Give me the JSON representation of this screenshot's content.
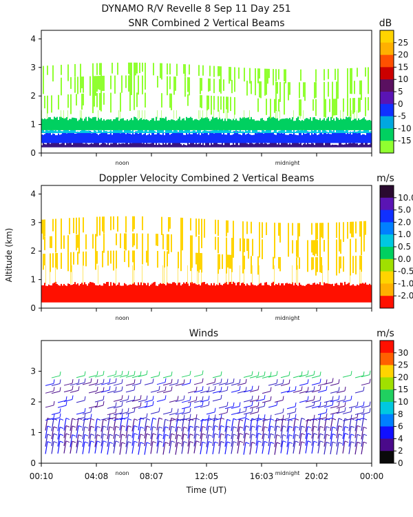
{
  "header": {
    "line1": "DYNAMO R/V Revelle    8 Sep 11 Day 251"
  },
  "time_axis": {
    "label": "Time (UT)",
    "ticks": [
      "00:10",
      "04:08",
      "08:07",
      "12:05",
      "16:03",
      "20:02",
      "00:00"
    ],
    "markers": [
      "noon",
      "midnight"
    ]
  },
  "altitude_label": "Altitude (km)",
  "chart_data": [
    {
      "type": "heatmap",
      "title": "SNR Combined 2 Vertical Beams",
      "xlabel": "Time (UT)",
      "ylabel": "Altitude (km)",
      "xlim": [
        0,
        24
      ],
      "ylim": [
        0,
        4.3
      ],
      "yticks": [
        "0",
        "1",
        "2",
        "3",
        "4"
      ],
      "colorbar": {
        "unit": "dB",
        "labels": [
          "25",
          "20",
          "15",
          "10",
          "5",
          "0",
          "-5",
          "-10",
          "-15"
        ],
        "colors": [
          "#ffd400",
          "#ffb000",
          "#ff5000",
          "#cc0000",
          "#5a1060",
          "#5a14b4",
          "#1030ff",
          "#00a8e0",
          "#00d060",
          "#90ff30"
        ]
      },
      "layers": [
        {
          "base_km": 0.2,
          "top_km": 0.35,
          "color": "#3a1480",
          "desc": "surface layer"
        },
        {
          "base_km": 0.35,
          "top_km": 0.7,
          "color": "#1030ff"
        },
        {
          "base_km": 0.7,
          "top_km": 0.8,
          "color": "#00c8e0"
        },
        {
          "base_km": 0.8,
          "top_km": 1.2,
          "color": "#00d060"
        },
        {
          "base_km": 1.2,
          "top_km": 3.1,
          "color": "#90ff30",
          "desc": "sparse"
        }
      ]
    },
    {
      "type": "heatmap",
      "title": "Doppler Velocity Combined 2 Vertical Beams",
      "xlabel": "Time (UT)",
      "ylabel": "Altitude (km)",
      "xlim": [
        0,
        24
      ],
      "ylim": [
        0,
        4.3
      ],
      "yticks": [
        "0",
        "1",
        "2",
        "3",
        "4"
      ],
      "colorbar": {
        "unit": "m/s",
        "labels": [
          "10.0",
          "5.0",
          "2.0",
          "1.0",
          "0.5",
          "0.0",
          "-0.5",
          "-1.0",
          "-2.0"
        ],
        "colors": [
          "#2a0a30",
          "#5a14b4",
          "#1030ff",
          "#0080ff",
          "#00c8e0",
          "#00d060",
          "#a0e000",
          "#ffd400",
          "#ffb000",
          "#ff1000"
        ]
      },
      "layers": [
        {
          "base_km": 0.2,
          "top_km": 0.85,
          "color": "#ff1000"
        },
        {
          "base_km": 0.85,
          "top_km": 3.2,
          "color": "#ffd400",
          "desc": "sparse"
        }
      ]
    },
    {
      "type": "wind-barbs",
      "title": "Winds",
      "xlabel": "Time (UT)",
      "ylabel": "Altitude (km)",
      "xlim": [
        0,
        24
      ],
      "ylim": [
        0,
        4
      ],
      "yticks": [
        "0",
        "1",
        "2",
        "3"
      ],
      "colorbar": {
        "unit": "m/s",
        "labels": [
          "30",
          "25",
          "20",
          "15",
          "10",
          "8",
          "6",
          "4",
          "2",
          "0"
        ],
        "colors": [
          "#ff1000",
          "#ff6000",
          "#ffd400",
          "#a0e000",
          "#20d060",
          "#00c8e0",
          "#0080ff",
          "#1010ff",
          "#4a0a8a",
          "#0a0a0a"
        ]
      }
    }
  ]
}
